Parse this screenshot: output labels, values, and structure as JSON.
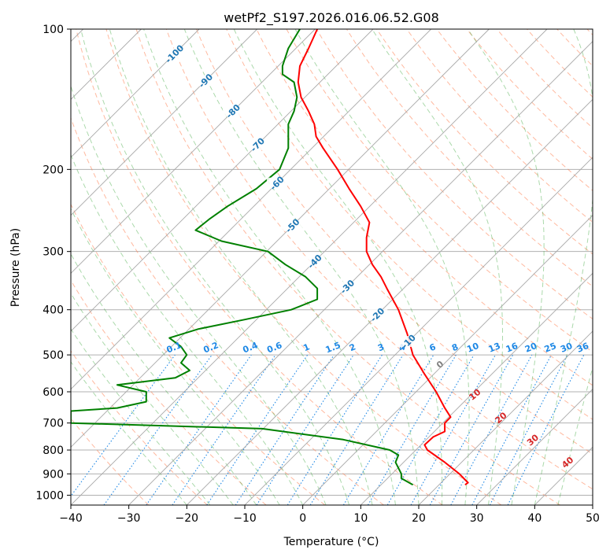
{
  "chart_data": {
    "type": "line",
    "subtype": "skew-t log-p diagram",
    "title": "wetPf2_S197.2026.016.06.52.G08",
    "xlabel": "Temperature (°C)",
    "ylabel": "Pressure (hPa)",
    "xlim": [
      -40,
      50
    ],
    "ylim": [
      1050,
      100
    ],
    "y_scale": "log",
    "grid": true,
    "x_ticks": [
      -40,
      -30,
      -20,
      -10,
      0,
      10,
      20,
      30,
      40,
      50
    ],
    "y_ticks": [
      100,
      200,
      300,
      400,
      500,
      600,
      700,
      800,
      900,
      1000
    ],
    "colors": {
      "temperature": "#ff0000",
      "dewpoint": "#008000",
      "isotherm_label": "#1f77b4",
      "dry_adiabat": "#ff7f50",
      "moist_adiabat": "#2ca02c",
      "mixing_ratio": "#1e88e5",
      "dry_adiabat_label": "#d62728"
    },
    "isotherm_labels": [
      "-100",
      "-90",
      "-80",
      "-70",
      "-60",
      "-50",
      "-40",
      "-30",
      "-20",
      "-10"
    ],
    "isotherm_label_values": [
      -100,
      -90,
      -80,
      -70,
      -60,
      -50,
      -40,
      -30,
      -20,
      -10
    ],
    "mixing_ratio_labels": [
      "0.1",
      "0.2",
      "0.4",
      "0.6",
      "1",
      "1.5",
      "2",
      "3",
      "4",
      "6",
      "8",
      "10",
      "13",
      "16",
      "20",
      "25",
      "30",
      "36"
    ],
    "mixing_ratio_values": [
      0.1,
      0.2,
      0.4,
      0.6,
      1,
      1.5,
      2,
      3,
      4,
      6,
      8,
      10,
      13,
      16,
      20,
      25,
      30,
      36
    ],
    "dry_adiabat_labels": [
      "0",
      "10",
      "20",
      "30",
      "40"
    ],
    "dry_adiabat_values": [
      0,
      10,
      20,
      30,
      40
    ],
    "series": [
      {
        "name": "temperature",
        "points": [
          {
            "p": 100,
            "t": 2.5
          },
          {
            "p": 110,
            "t": 1.0
          },
          {
            "p": 120,
            "t": -0.5
          },
          {
            "p": 130,
            "t": -0.8
          },
          {
            "p": 140,
            "t": -0.3
          },
          {
            "p": 150,
            "t": 1.0
          },
          {
            "p": 160,
            "t": 2.0
          },
          {
            "p": 170,
            "t": 2.3
          },
          {
            "p": 180,
            "t": 3.5
          },
          {
            "p": 200,
            "t": 6.0
          },
          {
            "p": 220,
            "t": 8.0
          },
          {
            "p": 240,
            "t": 10.0
          },
          {
            "p": 260,
            "t": 11.5
          },
          {
            "p": 280,
            "t": 11.0
          },
          {
            "p": 300,
            "t": 11.0
          },
          {
            "p": 320,
            "t": 12.0
          },
          {
            "p": 340,
            "t": 13.5
          },
          {
            "p": 360,
            "t": 14.5
          },
          {
            "p": 400,
            "t": 16.5
          },
          {
            "p": 450,
            "t": 18.0
          },
          {
            "p": 500,
            "t": 19.0
          },
          {
            "p": 550,
            "t": 21.0
          },
          {
            "p": 600,
            "t": 23.0
          },
          {
            "p": 650,
            "t": 24.5
          },
          {
            "p": 680,
            "t": 25.5
          },
          {
            "p": 700,
            "t": 24.5
          },
          {
            "p": 730,
            "t": 24.5
          },
          {
            "p": 750,
            "t": 22.5
          },
          {
            "p": 780,
            "t": 21.0
          },
          {
            "p": 800,
            "t": 21.5
          },
          {
            "p": 850,
            "t": 24.5
          },
          {
            "p": 900,
            "t": 27.0
          },
          {
            "p": 940,
            "t": 28.5
          },
          {
            "p": 950,
            "t": 28.0
          }
        ]
      },
      {
        "name": "dewpoint",
        "points": [
          {
            "p": 100,
            "t": -0.5
          },
          {
            "p": 110,
            "t": -2.5
          },
          {
            "p": 120,
            "t": -3.5
          },
          {
            "p": 125,
            "t": -3.5
          },
          {
            "p": 130,
            "t": -1.5
          },
          {
            "p": 140,
            "t": -1.0
          },
          {
            "p": 150,
            "t": -1.5
          },
          {
            "p": 160,
            "t": -2.5
          },
          {
            "p": 180,
            "t": -2.5
          },
          {
            "p": 200,
            "t": -4.0
          },
          {
            "p": 220,
            "t": -8.0
          },
          {
            "p": 240,
            "t": -13.0
          },
          {
            "p": 255,
            "t": -16.0
          },
          {
            "p": 270,
            "t": -18.5
          },
          {
            "p": 285,
            "t": -14.0
          },
          {
            "p": 300,
            "t": -6.0
          },
          {
            "p": 320,
            "t": -3.0
          },
          {
            "p": 340,
            "t": 0.5
          },
          {
            "p": 360,
            "t": 2.5
          },
          {
            "p": 380,
            "t": 2.5
          },
          {
            "p": 400,
            "t": -2.0
          },
          {
            "p": 420,
            "t": -10.0
          },
          {
            "p": 440,
            "t": -18.0
          },
          {
            "p": 460,
            "t": -23.0
          },
          {
            "p": 480,
            "t": -21.0
          },
          {
            "p": 500,
            "t": -20.0
          },
          {
            "p": 520,
            "t": -21.0
          },
          {
            "p": 540,
            "t": -19.5
          },
          {
            "p": 560,
            "t": -22.0
          },
          {
            "p": 580,
            "t": -32.0
          },
          {
            "p": 600,
            "t": -27.0
          },
          {
            "p": 630,
            "t": -27.0
          },
          {
            "p": 650,
            "t": -32.0
          },
          {
            "p": 660,
            "t": -40.0
          },
          {
            "p": 700,
            "t": -40.0
          },
          {
            "p": 720,
            "t": -7.0
          },
          {
            "p": 760,
            "t": 7.0
          },
          {
            "p": 800,
            "t": 15.0
          },
          {
            "p": 820,
            "t": 16.5
          },
          {
            "p": 850,
            "t": 16.0
          },
          {
            "p": 900,
            "t": 17.0
          },
          {
            "p": 920,
            "t": 17.0
          },
          {
            "p": 950,
            "t": 19.0
          }
        ]
      }
    ]
  }
}
